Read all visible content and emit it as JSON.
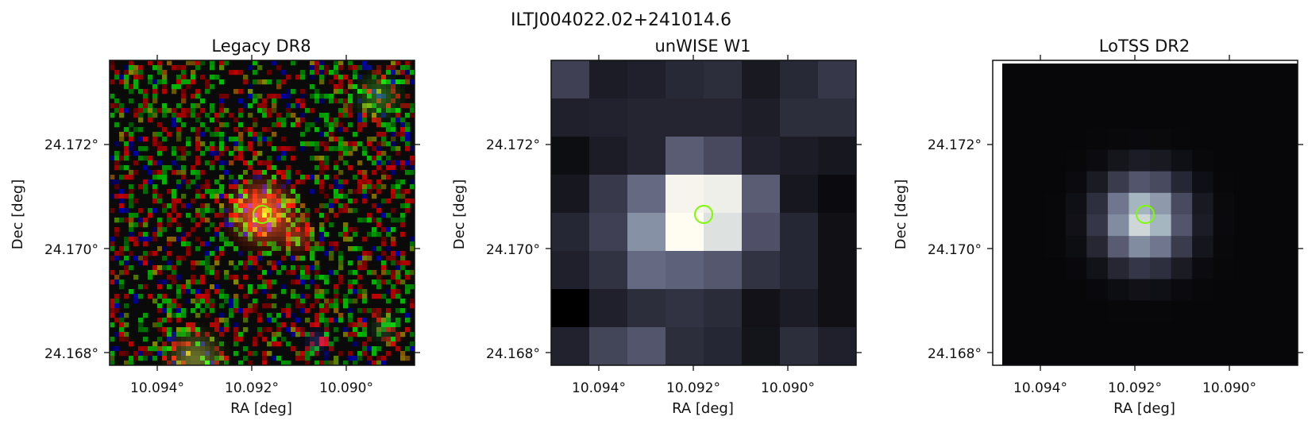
{
  "figure": {
    "suptitle": "ILTJ004022.02+241014.6"
  },
  "panels": [
    {
      "title": "Legacy DR8",
      "xlabel": "RA [deg]",
      "ylabel": "Dec [deg]",
      "xticks": [
        "10.094°",
        "10.092°",
        "10.090°"
      ],
      "yticks": [
        "24.172°",
        "24.170°",
        "24.168°"
      ],
      "show_ylabels": true
    },
    {
      "title": "unWISE W1",
      "xlabel": "RA [deg]",
      "ylabel": "Dec [deg]",
      "xticks": [
        "10.094°",
        "10.092°",
        "10.090°"
      ],
      "yticks": [
        "24.172°",
        "24.170°",
        "24.168°"
      ],
      "show_ylabels": true
    },
    {
      "title": "LoTSS DR2",
      "xlabel": "RA [deg]",
      "ylabel": "Dec [deg]",
      "xticks": [
        "10.094°",
        "10.092°",
        "10.090°"
      ],
      "yticks": [
        "24.172°",
        "24.170°",
        "24.168°"
      ],
      "show_ylabels": true
    }
  ],
  "marker": {
    "color": "#7cfc00",
    "ra": 10.0917,
    "dec": 24.1705
  },
  "colors": {
    "unwise_colormap": "bone-like grey/blue",
    "lotss_colormap": "bone-like grey/blue"
  }
}
